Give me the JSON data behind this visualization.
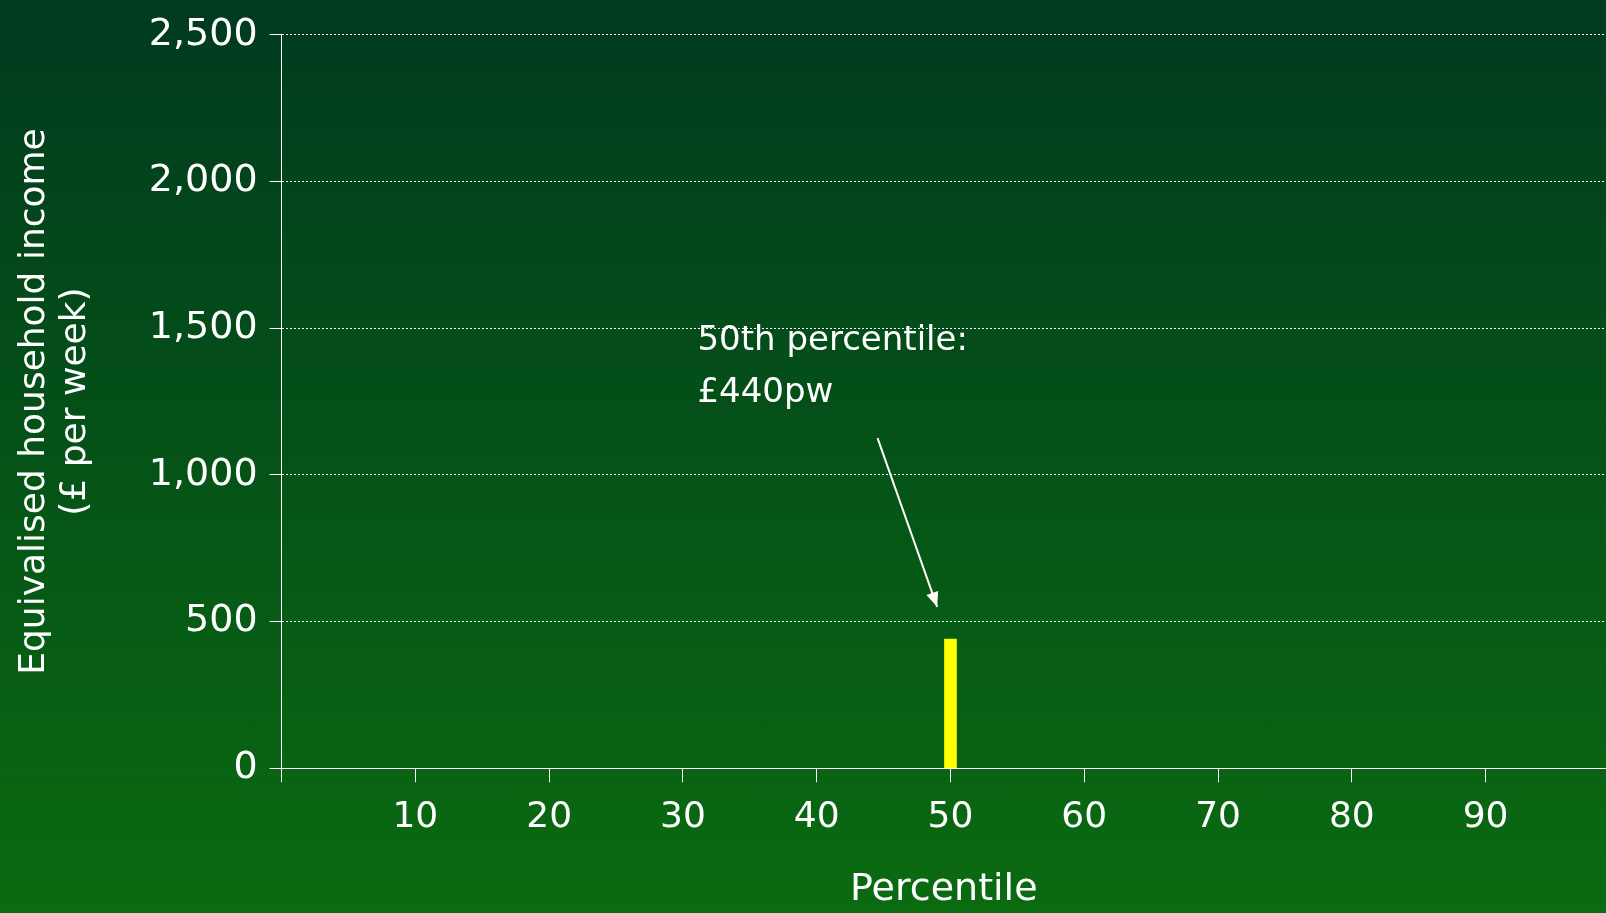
{
  "chart_data": {
    "type": "bar",
    "xlabel": "Percentile",
    "ylabel": "Equivalised household income\n(£ per week)",
    "x": [
      50
    ],
    "values": [
      440
    ],
    "color": "#ffff00",
    "xlim": [
      0,
      99
    ],
    "xticks": [
      {
        "value": 0,
        "label": null
      },
      10,
      20,
      30,
      40,
      50,
      60,
      70,
      80,
      90
    ],
    "ylim": [
      0,
      2500
    ],
    "yticks": [
      0,
      500,
      {
        "value": 1000,
        "label": "1,000"
      },
      {
        "value": 1500,
        "label": "1,500"
      },
      {
        "value": 2000,
        "label": "2,000"
      },
      {
        "value": 2500,
        "label": "2,500"
      }
    ],
    "grid": "y",
    "legend": false,
    "annotations": [
      "50th percentile:\n£440pw"
    ]
  }
}
